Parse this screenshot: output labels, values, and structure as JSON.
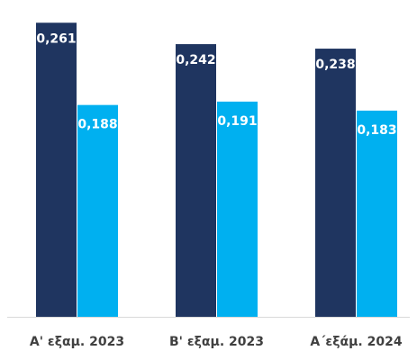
{
  "chart_data": {
    "type": "bar",
    "categories": [
      "Α' εξαμ. 2023",
      "Β' εξαμ. 2023",
      "Α΄εξάμ. 2024"
    ],
    "series": [
      {
        "values": [
          0.261,
          0.242,
          0.238
        ],
        "labels": [
          "0,261",
          "0,242",
          "0,238"
        ],
        "color": "#1f3560"
      },
      {
        "values": [
          0.188,
          0.191,
          0.183
        ],
        "labels": [
          "0,188",
          "0,191",
          "0,183"
        ],
        "color": "#00b0f0"
      }
    ],
    "title": "",
    "xlabel": "",
    "ylabel": "",
    "ylim": [
      0,
      0.27
    ],
    "grid": false,
    "legend": "none",
    "axis_color": "#d9d9d9"
  }
}
